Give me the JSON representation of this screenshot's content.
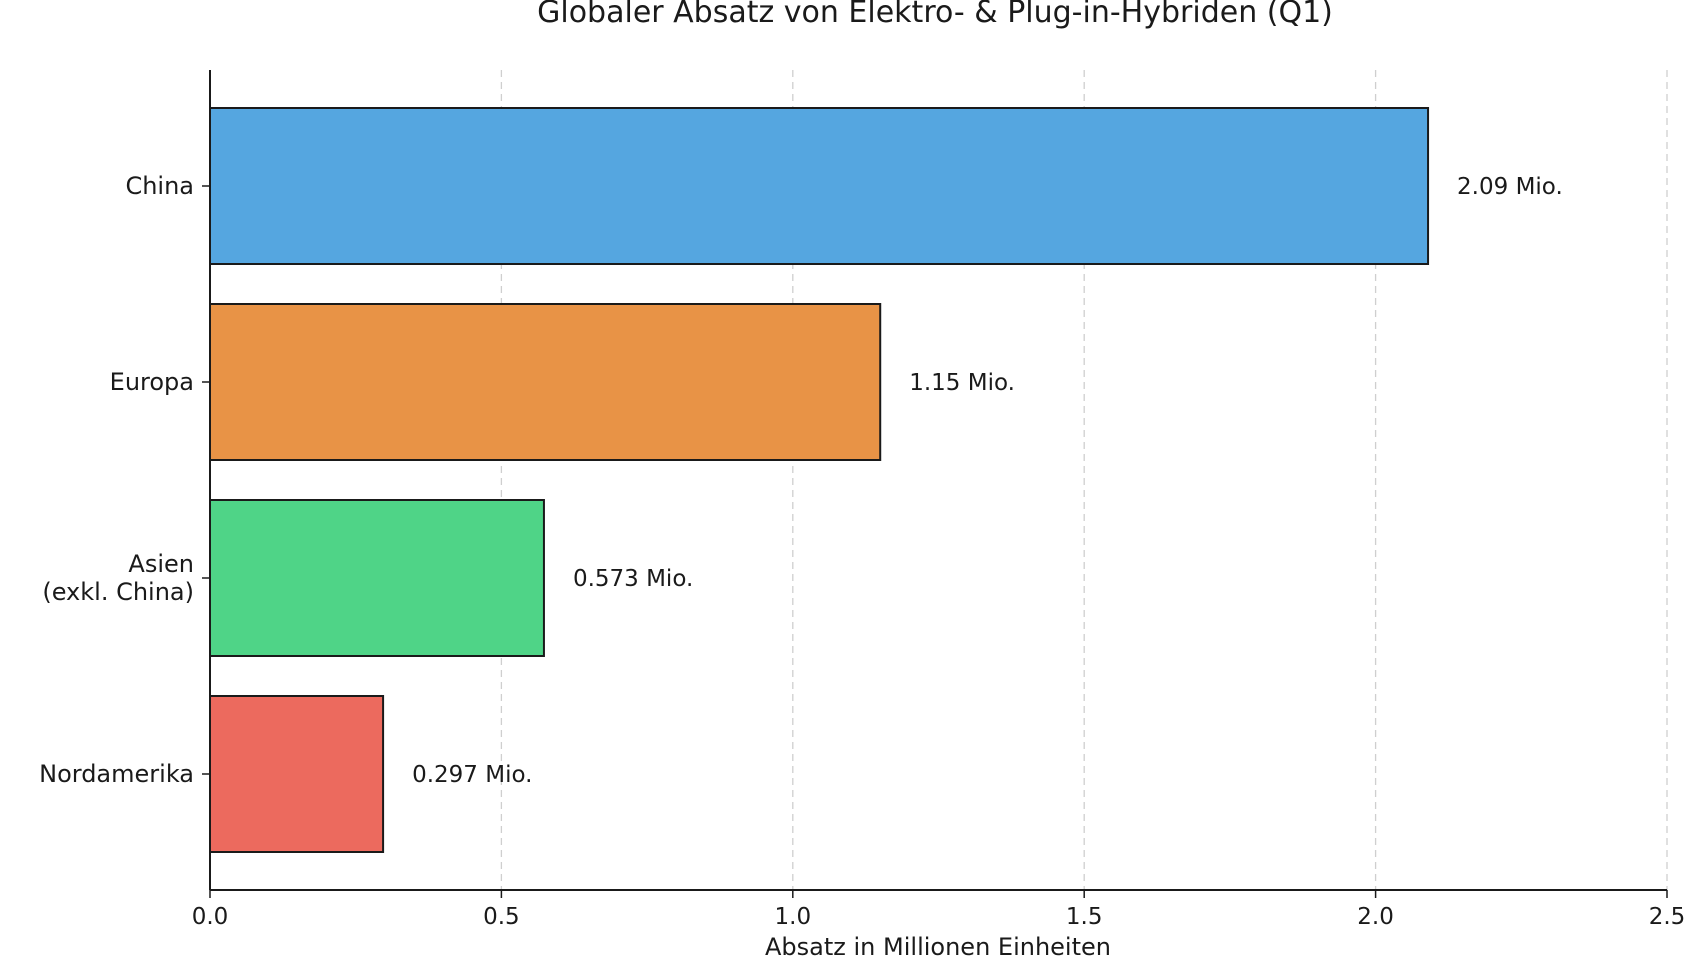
{
  "chart_data": {
    "type": "bar",
    "orientation": "horizontal",
    "title": "Globaler Absatz von Elektro- & Plug-in-Hybriden (Q1)",
    "xlabel": "Absatz in Millionen Einheiten",
    "ylabel": "",
    "categories": [
      [
        "China"
      ],
      [
        "Europa"
      ],
      [
        "Asien",
        "(exkl. China)"
      ],
      [
        "Nordamerika"
      ]
    ],
    "values": [
      2.09,
      1.15,
      0.573,
      0.297
    ],
    "value_labels": [
      "2.09 Mio.",
      "1.15 Mio.",
      "0.573 Mio.",
      "0.297 Mio."
    ],
    "colors": [
      "#55a6e0",
      "#e89346",
      "#4fd487",
      "#ec6a5e"
    ],
    "xlim": [
      0.0,
      2.5
    ],
    "xticks": [
      0.0,
      0.5,
      1.0,
      1.5,
      2.0,
      2.5
    ],
    "xtick_labels": [
      "0.0",
      "0.5",
      "1.0",
      "1.5",
      "2.0",
      "2.5"
    ],
    "grid": "x-dashed",
    "legend": "none"
  }
}
